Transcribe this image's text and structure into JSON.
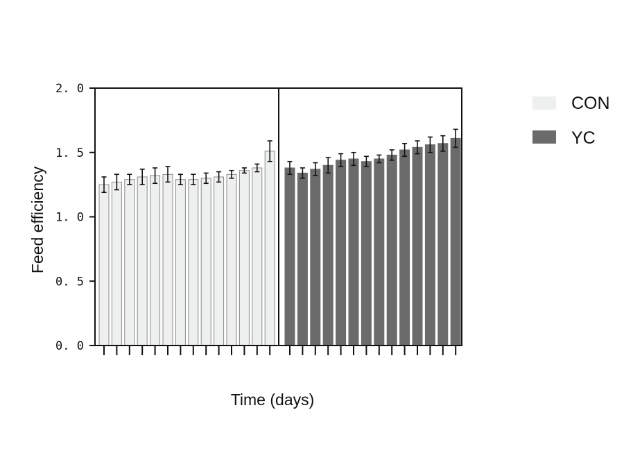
{
  "chart_data": {
    "type": "bar",
    "title": "",
    "xlabel": "Time (days)",
    "ylabel": "Feed efficiency",
    "ylim": [
      0,
      2.0
    ],
    "yticks": [
      "0. 0",
      "0. 5",
      "1. 0",
      "1. 5",
      "2. 0"
    ],
    "grid": false,
    "legend_position": "right",
    "series": [
      {
        "name": "CON",
        "color": "#eef0ef",
        "edge": "#8a8a8a",
        "values": [
          1.25,
          1.27,
          1.29,
          1.31,
          1.32,
          1.33,
          1.29,
          1.29,
          1.3,
          1.31,
          1.33,
          1.36,
          1.38,
          1.51
        ],
        "errors": [
          0.06,
          0.06,
          0.04,
          0.06,
          0.06,
          0.06,
          0.04,
          0.04,
          0.04,
          0.04,
          0.03,
          0.02,
          0.03,
          0.08
        ]
      },
      {
        "name": "YC",
        "color": "#6b6b6b",
        "edge": "#6b6b6b",
        "values": [
          1.38,
          1.34,
          1.37,
          1.4,
          1.44,
          1.45,
          1.43,
          1.45,
          1.48,
          1.52,
          1.54,
          1.56,
          1.57,
          1.61
        ],
        "errors": [
          0.05,
          0.04,
          0.05,
          0.06,
          0.05,
          0.05,
          0.04,
          0.03,
          0.04,
          0.05,
          0.05,
          0.06,
          0.06,
          0.07
        ]
      }
    ]
  }
}
